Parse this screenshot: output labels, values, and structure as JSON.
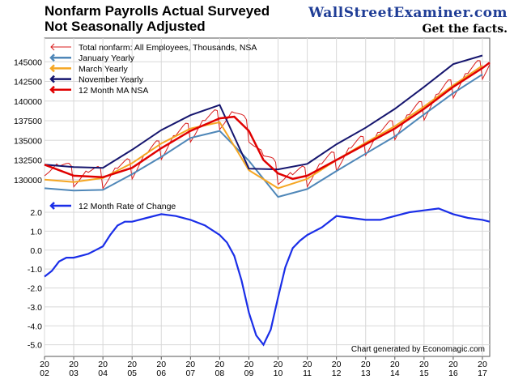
{
  "header": {
    "title_line1": "Nonfarm Payrolls Actual Surveyed",
    "title_line2": "Not Seasonally Adjusted",
    "brand": "WallStreetExaminer.com",
    "tagline": "Get the facts."
  },
  "credit": "Chart generated by Economagic.com",
  "colors": {
    "total": "#d81b1b",
    "january": "#4f87b8",
    "march": "#f5a623",
    "november": "#15156e",
    "ma": "#e00000",
    "roc": "#1a2ee8"
  },
  "chart_data": {
    "type": "line",
    "x_ticks": [
      "2002",
      "2003",
      "2004",
      "2005",
      "2006",
      "2007",
      "2008",
      "2009",
      "2010",
      "2011",
      "2012",
      "2013",
      "2014",
      "2015",
      "2016",
      "2017"
    ],
    "x_tick_labels": [
      [
        "20",
        "02"
      ],
      [
        "20",
        "03"
      ],
      [
        "20",
        "04"
      ],
      [
        "20",
        "05"
      ],
      [
        "20",
        "06"
      ],
      [
        "20",
        "07"
      ],
      [
        "20",
        "08"
      ],
      [
        "20",
        "09"
      ],
      [
        "20",
        "10"
      ],
      [
        "20",
        "11"
      ],
      [
        "20",
        "12"
      ],
      [
        "20",
        "13"
      ],
      [
        "20",
        "14"
      ],
      [
        "20",
        "15"
      ],
      [
        "20",
        "16"
      ],
      [
        "20",
        "17"
      ]
    ],
    "xlim": [
      2002.0,
      2017.25
    ],
    "upper": {
      "ylim": [
        127500,
        147500
      ],
      "y_ticks": [
        130000,
        132500,
        135000,
        137500,
        140000,
        142500,
        145000
      ],
      "y_tick_labels": [
        "130000",
        "132500",
        "135000",
        "137500",
        "140000",
        "142500",
        "145000"
      ],
      "series": [
        {
          "name": "Total nonfarm: All Employees, Thousands, NSA",
          "key": "total",
          "monthly_from_ma": true,
          "amplitude": 1500
        },
        {
          "name": "January Yearly",
          "key": "january",
          "x": [
            2002,
            2003,
            2004,
            2005,
            2006,
            2007,
            2008,
            2009,
            2010,
            2011,
            2012,
            2013,
            2014,
            2015,
            2016,
            2017
          ],
          "values": [
            128900,
            128600,
            128700,
            130700,
            132900,
            135300,
            136200,
            132400,
            127800,
            128800,
            131100,
            133300,
            135500,
            138300,
            141000,
            143400
          ]
        },
        {
          "name": "March Yearly",
          "key": "march",
          "x": [
            2002,
            2003,
            2004,
            2005,
            2006,
            2007,
            2008,
            2009,
            2010,
            2011,
            2012,
            2013,
            2014,
            2015,
            2016,
            2017
          ],
          "values": [
            130000,
            129700,
            130200,
            132100,
            134600,
            136500,
            137300,
            131200,
            128900,
            130100,
            132500,
            134700,
            136800,
            139300,
            142000,
            144500
          ]
        },
        {
          "name": "November Yearly",
          "key": "november",
          "x": [
            2002,
            2003,
            2004,
            2005,
            2006,
            2007,
            2008,
            2009,
            2010,
            2011,
            2012,
            2013,
            2014,
            2015,
            2016,
            2017
          ],
          "values": [
            131900,
            131600,
            131500,
            133800,
            136300,
            138200,
            139500,
            131400,
            131300,
            132000,
            134500,
            136600,
            139000,
            141800,
            144700,
            145800
          ]
        },
        {
          "name": "12 Month MA NSA",
          "key": "ma",
          "x": [
            2002,
            2003,
            2004,
            2005,
            2006,
            2007,
            2008,
            2008.5,
            2009,
            2009.5,
            2010,
            2010.5,
            2011,
            2012,
            2013,
            2014,
            2015,
            2016,
            2017,
            2017.25
          ],
          "values": [
            131900,
            130500,
            130300,
            131500,
            134000,
            136200,
            137800,
            138000,
            136200,
            132500,
            130800,
            130100,
            130500,
            132500,
            134500,
            136500,
            139000,
            141800,
            144200,
            144900
          ]
        }
      ]
    },
    "lower": {
      "ylim": [
        -5.4,
        2.6
      ],
      "y_ticks": [
        2.0,
        1.0,
        0.0,
        -1.0,
        -2.0,
        -3.0,
        -4.0,
        -5.0
      ],
      "y_tick_labels": [
        "2.0",
        "1.0",
        "0.0",
        "-1.0",
        "-2.0",
        "-3.0",
        "-4.0",
        "-5.0"
      ],
      "series": [
        {
          "name": "12 Month Rate of Change",
          "key": "roc",
          "x": [
            2002.0,
            2002.25,
            2002.5,
            2002.75,
            2003.0,
            2003.25,
            2003.5,
            2003.75,
            2004.0,
            2004.25,
            2004.5,
            2004.75,
            2005.0,
            2005.5,
            2006.0,
            2006.5,
            2007.0,
            2007.5,
            2008.0,
            2008.25,
            2008.5,
            2008.75,
            2009.0,
            2009.25,
            2009.5,
            2009.75,
            2010.0,
            2010.25,
            2010.5,
            2010.75,
            2011.0,
            2011.5,
            2012.0,
            2012.5,
            2013.0,
            2013.5,
            2014.0,
            2014.5,
            2015.0,
            2015.5,
            2016.0,
            2016.5,
            2017.0,
            2017.25
          ],
          "values": [
            -1.4,
            -1.1,
            -0.6,
            -0.4,
            -0.4,
            -0.3,
            -0.2,
            0.0,
            0.2,
            0.8,
            1.3,
            1.5,
            1.5,
            1.7,
            1.9,
            1.8,
            1.6,
            1.3,
            0.8,
            0.4,
            -0.3,
            -1.6,
            -3.3,
            -4.5,
            -5.0,
            -4.2,
            -2.5,
            -0.9,
            0.1,
            0.5,
            0.8,
            1.2,
            1.8,
            1.7,
            1.6,
            1.6,
            1.8,
            2.0,
            2.1,
            2.2,
            1.9,
            1.7,
            1.6,
            1.5
          ]
        }
      ]
    }
  }
}
